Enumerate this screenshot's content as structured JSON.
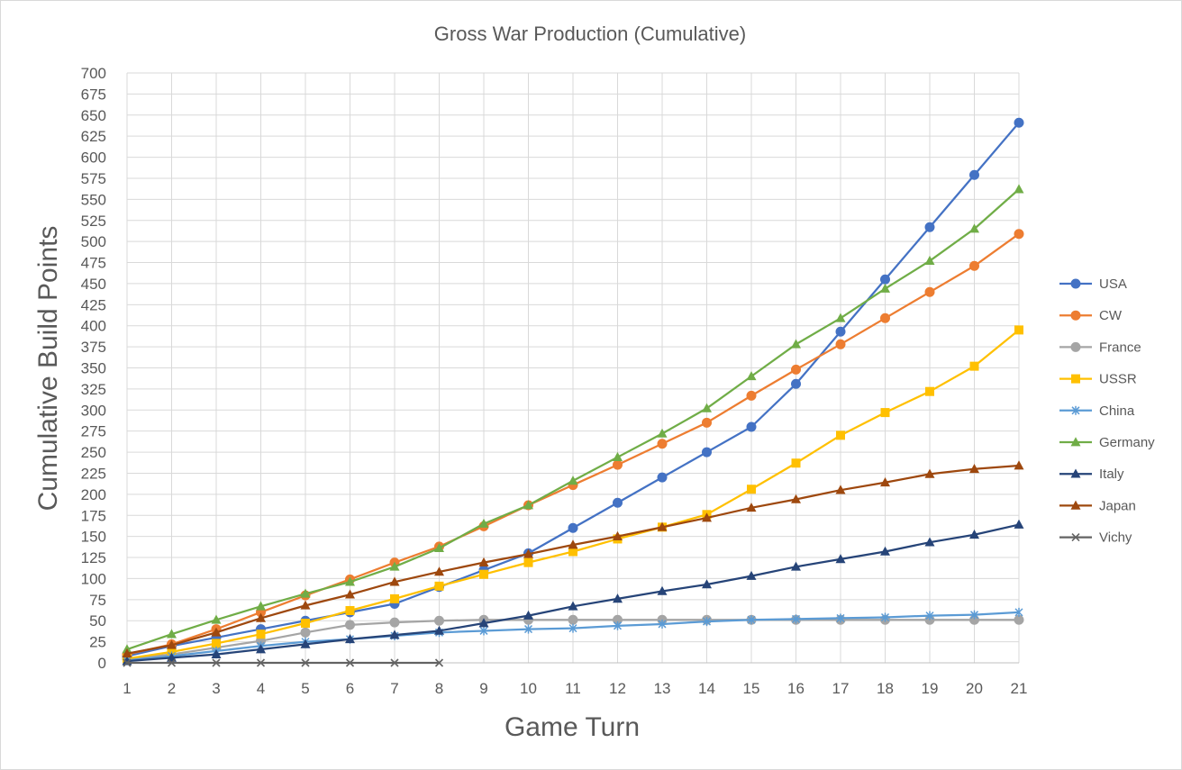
{
  "chart_data": {
    "type": "line",
    "title": "Gross War Production (Cumulative)",
    "xlabel": "Game Turn",
    "ylabel": "Cumulative Build Points",
    "ylim": [
      0,
      700
    ],
    "ytick_step": 25,
    "grid": true,
    "legend_position": "right",
    "categories": [
      1,
      2,
      3,
      4,
      5,
      6,
      7,
      8,
      9,
      10,
      11,
      12,
      13,
      14,
      15,
      16,
      17,
      18,
      19,
      20,
      21
    ],
    "series": [
      {
        "name": "USA",
        "color": "#4472C4",
        "marker": "circle",
        "values": [
          8,
          20,
          30,
          40,
          50,
          60,
          70,
          90,
          110,
          130,
          160,
          190,
          220,
          250,
          280,
          331,
          393,
          455,
          517,
          579,
          641
        ]
      },
      {
        "name": "CW",
        "color": "#ED7D31",
        "marker": "circle",
        "values": [
          10,
          22,
          40,
          60,
          80,
          99,
          119,
          138,
          162,
          187,
          211,
          235,
          260,
          285,
          317,
          348,
          378,
          409,
          440,
          471,
          509
        ]
      },
      {
        "name": "France",
        "color": "#A5A5A5",
        "marker": "circle",
        "values": [
          5,
          10,
          18,
          26,
          36,
          45,
          48,
          50,
          51,
          51,
          51,
          51,
          51,
          51,
          51,
          51,
          51,
          51,
          51,
          51,
          51
        ]
      },
      {
        "name": "USSR",
        "color": "#FFC000",
        "marker": "square",
        "values": [
          5,
          13,
          23,
          34,
          47,
          62,
          76,
          91,
          105,
          119,
          132,
          147,
          161,
          176,
          206,
          237,
          270,
          297,
          322,
          352,
          395
        ]
      },
      {
        "name": "China",
        "color": "#5B9BD5",
        "marker": "asterisk",
        "values": [
          3,
          8,
          14,
          20,
          25,
          28,
          32,
          36,
          38,
          40,
          41,
          44,
          46,
          49,
          51,
          52,
          53,
          54,
          56,
          57,
          60
        ]
      },
      {
        "name": "Germany",
        "color": "#70AD47",
        "marker": "triangle",
        "values": [
          16,
          34,
          51,
          67,
          82,
          96,
          114,
          136,
          165,
          187,
          216,
          244,
          272,
          302,
          340,
          378,
          409,
          444,
          477,
          515,
          562
        ]
      },
      {
        "name": "Italy",
        "color": "#264478",
        "marker": "triangle",
        "values": [
          2,
          6,
          10,
          16,
          22,
          28,
          33,
          38,
          47,
          56,
          67,
          76,
          85,
          93,
          103,
          114,
          123,
          132,
          143,
          152,
          164
        ]
      },
      {
        "name": "Japan",
        "color": "#9E480E",
        "marker": "triangle",
        "values": [
          11,
          21,
          36,
          53,
          68,
          81,
          96,
          108,
          119,
          129,
          140,
          150,
          161,
          172,
          184,
          194,
          205,
          214,
          224,
          230,
          234
        ]
      },
      {
        "name": "Vichy",
        "color": "#636363",
        "marker": "x",
        "values": [
          0,
          0,
          0,
          0,
          0,
          0,
          0,
          0,
          null,
          null,
          null,
          null,
          null,
          null,
          null,
          null,
          null,
          null,
          null,
          null,
          null
        ]
      }
    ]
  }
}
